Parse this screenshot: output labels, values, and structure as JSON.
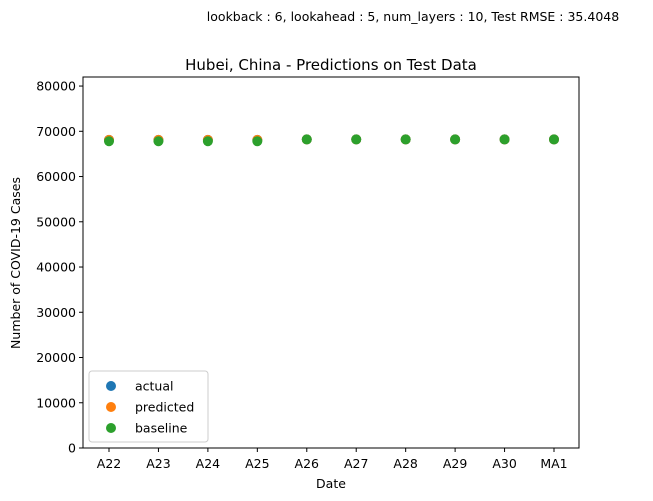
{
  "chart_data": {
    "type": "scatter",
    "suptitle": "lookback : 6, lookahead : 5, num_layers : 10, Test RMSE : 35.4048",
    "title": "Hubei, China - Predictions on Test Data",
    "xlabel": "Date",
    "ylabel": "Number of COVID-19 Cases",
    "ylim": [
      0,
      82000
    ],
    "yticks": [
      0,
      10000,
      20000,
      30000,
      40000,
      50000,
      60000,
      70000,
      80000
    ],
    "categories": [
      "A22",
      "A23",
      "A24",
      "A25",
      "A26",
      "A27",
      "A28",
      "A29",
      "A30",
      "MA1"
    ],
    "grid": false,
    "legend": "lower-left",
    "series": [
      {
        "name": "actual",
        "color": "#1f77b4",
        "values": [
          68100,
          68100,
          68100,
          68100,
          68200,
          68200,
          68200,
          68200,
          68200,
          68200
        ]
      },
      {
        "name": "predicted",
        "color": "#ff7f0e",
        "values": [
          68100,
          68100,
          68100,
          68100,
          68200,
          68200,
          68200,
          68200,
          68200,
          68200
        ]
      },
      {
        "name": "baseline",
        "color": "#2ca02c",
        "values": [
          67800,
          67800,
          67800,
          67800,
          68200,
          68200,
          68200,
          68200,
          68200,
          68200
        ]
      }
    ]
  }
}
